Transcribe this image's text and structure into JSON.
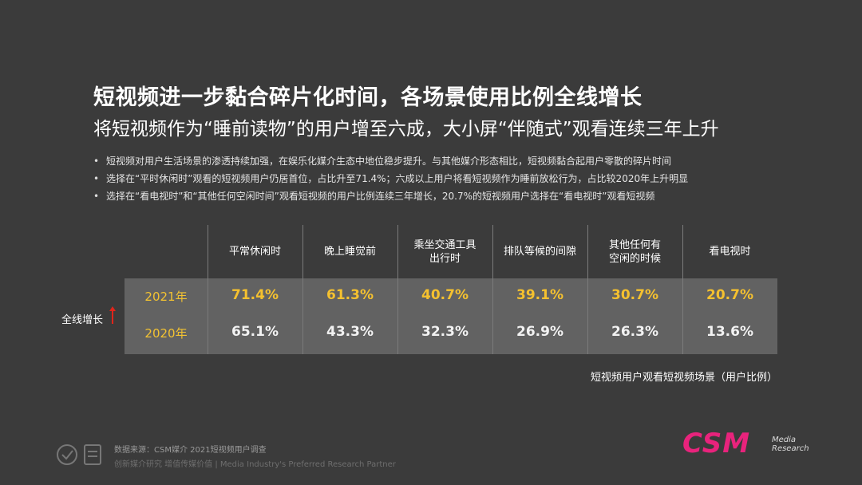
{
  "header": {
    "title": "短视频进一步黏合碎片化时间，各场景使用比例全线增长",
    "subtitle": "将短视频作为“睡前读物”的用户增至六成，大小屏“伴随式”观看连续三年上升"
  },
  "bullets": [
    "短视频对用户生活场景的渗透持续加强，在娱乐化媒介生态中地位稳步提升。与其他媒介形态相比，短视频黏合起用户零散的碎片时间",
    "选择在“平时休闲时”观看的短视频用户仍居首位，占比升至71.4%；六成以上用户将看短视频作为睡前放松行为，占比较2020年上升明显",
    "选择在“看电视时”和“其他任何空闲时间”观看短视频的用户比例连续三年增长，20.7%的短视频用户选择在“看电视时”观看短视频"
  ],
  "chart_data": {
    "type": "table",
    "categories": [
      [
        "平常休闲时"
      ],
      [
        "晚上睡觉前"
      ],
      [
        "乘坐交通工具",
        "出行时"
      ],
      [
        "排队等候的间隙"
      ],
      [
        "其他任何有",
        "空闲的时候"
      ],
      [
        "看电视时"
      ]
    ],
    "series": [
      {
        "name": "2021年",
        "values": [
          "71.4%",
          "61.3%",
          "40.7%",
          "39.1%",
          "30.7%",
          "20.7%"
        ]
      },
      {
        "name": "2020年",
        "values": [
          "65.1%",
          "43.3%",
          "32.3%",
          "26.9%",
          "26.3%",
          "13.6%"
        ]
      }
    ],
    "side_label": "全线增长",
    "caption": "短视频用户观看短视频场景（用户比例）",
    "colors": {
      "row2021": "#f5c12f",
      "row2020": "#f2f2f2",
      "arrow": "#e0251b",
      "table_bg": "#626262"
    }
  },
  "footer": {
    "source": "数据来源：CSM媒介 2021短视频用户调查",
    "slogan": "创新媒介研究 增值传媒价值 | Media Industry's Preferred Research Partner",
    "logo_main": "CSM",
    "logo_sub_1": "Media",
    "logo_sub_2": "Research",
    "logo_color": "#e8237c"
  }
}
